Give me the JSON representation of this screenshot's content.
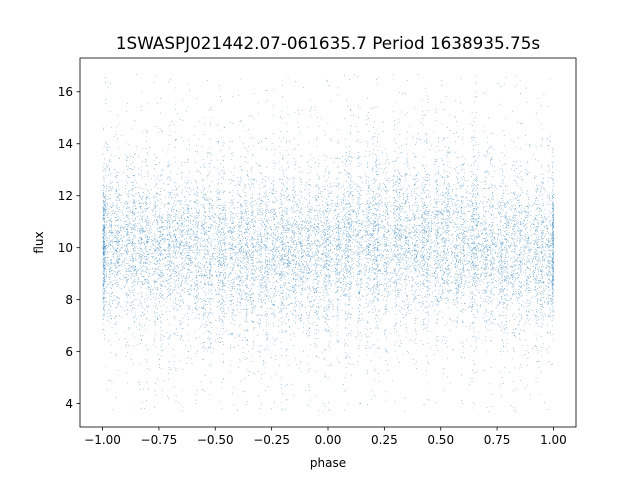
{
  "chart_data": {
    "type": "scatter",
    "title": "1SWASPJ021442.07-061635.7 Period 1638935.75s",
    "xlabel": "phase",
    "ylabel": "flux",
    "xlim": [
      -1.1,
      1.1
    ],
    "ylim": [
      3.1,
      17.3
    ],
    "xticks": [
      -1.0,
      -0.75,
      -0.5,
      -0.25,
      0.0,
      0.25,
      0.5,
      0.75,
      1.0
    ],
    "xtick_labels": [
      "−1.00",
      "−0.75",
      "−0.50",
      "−0.25",
      "0.00",
      "0.25",
      "0.50",
      "0.75",
      "1.00"
    ],
    "yticks": [
      4,
      6,
      8,
      10,
      12,
      14,
      16
    ],
    "ytick_labels": [
      "4",
      "6",
      "8",
      "10",
      "12",
      "14",
      "16"
    ],
    "x_range": [
      -1.0,
      1.0
    ],
    "y_range": [
      3.7,
      16.7
    ],
    "median_flux": 10.0,
    "grid": false,
    "legend": "none",
    "marker_color": "#1f77b4",
    "marker_size": 0.6
  }
}
